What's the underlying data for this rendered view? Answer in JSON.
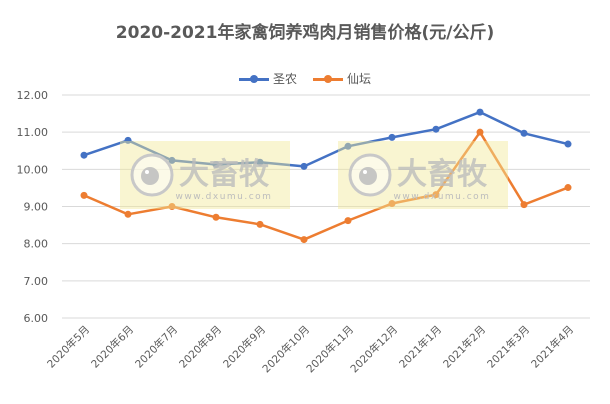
{
  "chart_data": {
    "type": "line",
    "title": "2020-2021年家禽饲养鸡肉月销售价格(元/公斤)",
    "xlabel": "",
    "ylabel": "",
    "ylim": [
      6,
      12
    ],
    "yticks": [
      "6.00",
      "7.00",
      "8.00",
      "9.00",
      "10.00",
      "11.00",
      "12.00"
    ],
    "grid": true,
    "legend_position": "top",
    "categories": [
      "2020年5月",
      "2020年6月",
      "2020年7月",
      "2020年8月",
      "2020年9月",
      "2020年10月",
      "2020年11月",
      "2020年12月",
      "2021年1月",
      "2021年2月",
      "2021年3月",
      "2021年4月"
    ],
    "series": [
      {
        "name": "圣农",
        "color": "#4472C4",
        "values": [
          10.38,
          10.78,
          10.24,
          10.13,
          10.19,
          10.08,
          10.62,
          10.86,
          11.08,
          11.54,
          10.97,
          10.68
        ]
      },
      {
        "name": "仙坛",
        "color": "#ED7D31",
        "values": [
          9.3,
          8.79,
          9.0,
          8.71,
          8.52,
          8.11,
          8.62,
          9.08,
          9.32,
          11.0,
          9.05,
          9.51
        ]
      }
    ]
  },
  "watermark": {
    "logo_text": "大畜牧",
    "url_text": "www.dxumu.com"
  }
}
